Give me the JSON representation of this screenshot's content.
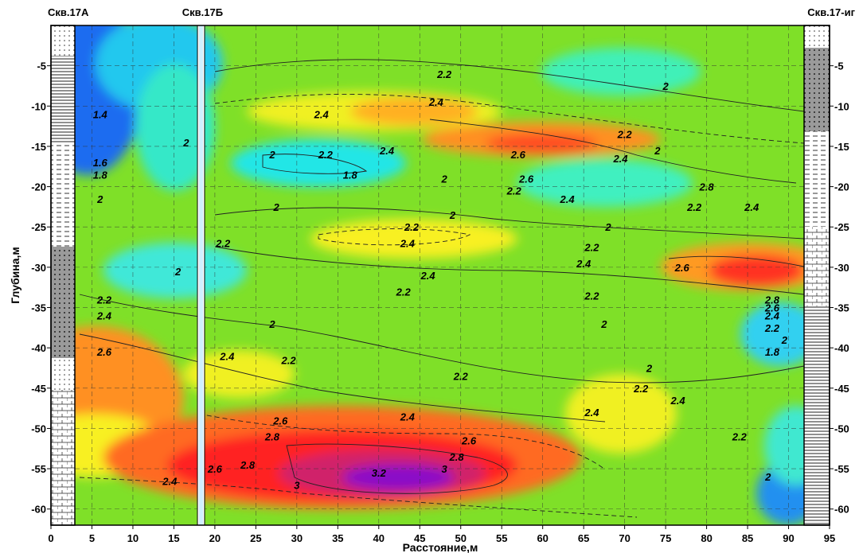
{
  "chart_data": {
    "type": "heatmap",
    "xlabel": "Расстояние,м",
    "ylabel": "Глубина,м",
    "xlim": [
      0,
      95
    ],
    "ylim": [
      -62,
      0
    ],
    "x_ticks": [
      "0",
      "5",
      "10",
      "15",
      "20",
      "25",
      "30",
      "35",
      "40",
      "45",
      "50",
      "55",
      "60",
      "65",
      "70",
      "75",
      "80",
      "85",
      "90",
      "95"
    ],
    "y_ticks": [
      "-5",
      "-10",
      "-15",
      "-20",
      "-25",
      "-30",
      "-35",
      "-40",
      "-45",
      "-50",
      "-55",
      "-60"
    ],
    "grid": true,
    "wells": [
      {
        "name": "Скв.17А",
        "x": 3
      },
      {
        "name": "Скв.17Б",
        "x": 18.5
      },
      {
        "name": "Скв.17-иг",
        "x": 92
      }
    ],
    "contour_labels": [
      {
        "text": "1.4",
        "x": 6,
        "y": -11
      },
      {
        "text": "1.6",
        "x": 6,
        "y": -17
      },
      {
        "text": "1.8",
        "x": 6,
        "y": -18.5
      },
      {
        "text": "2",
        "x": 16.5,
        "y": -14.5
      },
      {
        "text": "2",
        "x": 6,
        "y": -21.5
      },
      {
        "text": "2",
        "x": 15.5,
        "y": -30.5
      },
      {
        "text": "2.2",
        "x": 6.5,
        "y": -34
      },
      {
        "text": "2.4",
        "x": 6.5,
        "y": -36
      },
      {
        "text": "2.6",
        "x": 6.5,
        "y": -40.5
      },
      {
        "text": "2.4",
        "x": 14.5,
        "y": -56.5
      },
      {
        "text": "2.6",
        "x": 20,
        "y": -55
      },
      {
        "text": "2.2",
        "x": 21,
        "y": -27
      },
      {
        "text": "2.4",
        "x": 21.5,
        "y": -41
      },
      {
        "text": "2.8",
        "x": 24,
        "y": -54.5
      },
      {
        "text": "2.8",
        "x": 27,
        "y": -51
      },
      {
        "text": "2.6",
        "x": 28,
        "y": -49
      },
      {
        "text": "3",
        "x": 30,
        "y": -57
      },
      {
        "text": "2",
        "x": 27,
        "y": -16
      },
      {
        "text": "2",
        "x": 27.5,
        "y": -22.5
      },
      {
        "text": "2",
        "x": 27,
        "y": -37
      },
      {
        "text": "2.2",
        "x": 29,
        "y": -41.5
      },
      {
        "text": "2.4",
        "x": 33,
        "y": -11
      },
      {
        "text": "2.2",
        "x": 33.5,
        "y": -16
      },
      {
        "text": "1.8",
        "x": 36.5,
        "y": -18.5
      },
      {
        "text": "2.4",
        "x": 41,
        "y": -15.5
      },
      {
        "text": "2.2",
        "x": 44,
        "y": -25
      },
      {
        "text": "2.4",
        "x": 43.5,
        "y": -27
      },
      {
        "text": "2.4",
        "x": 46,
        "y": -31
      },
      {
        "text": "2.2",
        "x": 43,
        "y": -33
      },
      {
        "text": "2.4",
        "x": 43.5,
        "y": -48.5
      },
      {
        "text": "3.2",
        "x": 40,
        "y": -55.5
      },
      {
        "text": "2",
        "x": 48,
        "y": -19
      },
      {
        "text": "2",
        "x": 49,
        "y": -23.5
      },
      {
        "text": "2.2",
        "x": 48,
        "y": -6
      },
      {
        "text": "2.4",
        "x": 47,
        "y": -9.5
      },
      {
        "text": "2.2",
        "x": 50,
        "y": -43.5
      },
      {
        "text": "2.6",
        "x": 51,
        "y": -51.5
      },
      {
        "text": "2.8",
        "x": 49.5,
        "y": -53.5
      },
      {
        "text": "3",
        "x": 48,
        "y": -55
      },
      {
        "text": "2.6",
        "x": 57,
        "y": -16
      },
      {
        "text": "2.6",
        "x": 58,
        "y": -19
      },
      {
        "text": "2.2",
        "x": 56.5,
        "y": -20.5
      },
      {
        "text": "2.4",
        "x": 63,
        "y": -21.5
      },
      {
        "text": "2",
        "x": 68,
        "y": -25
      },
      {
        "text": "2.2",
        "x": 66,
        "y": -27.5
      },
      {
        "text": "2.4",
        "x": 65,
        "y": -29.5
      },
      {
        "text": "2.2",
        "x": 66,
        "y": -33.5
      },
      {
        "text": "2",
        "x": 67.5,
        "y": -37
      },
      {
        "text": "2.4",
        "x": 66,
        "y": -48
      },
      {
        "text": "2",
        "x": 74,
        "y": -15.5
      },
      {
        "text": "2.2",
        "x": 70,
        "y": -13.5
      },
      {
        "text": "2.4",
        "x": 69.5,
        "y": -16.5
      },
      {
        "text": "2",
        "x": 75,
        "y": -7.5
      },
      {
        "text": "2.8",
        "x": 80,
        "y": -20
      },
      {
        "text": "2.2",
        "x": 78.5,
        "y": -22.5
      },
      {
        "text": "2.6",
        "x": 77,
        "y": -30
      },
      {
        "text": "2",
        "x": 73,
        "y": -42.5
      },
      {
        "text": "2.2",
        "x": 72,
        "y": -45
      },
      {
        "text": "2.4",
        "x": 76.5,
        "y": -46.5
      },
      {
        "text": "2.4",
        "x": 85.5,
        "y": -22.5
      },
      {
        "text": "2.2",
        "x": 84,
        "y": -51
      },
      {
        "text": "2",
        "x": 87.5,
        "y": -56
      },
      {
        "text": "2.8",
        "x": 88,
        "y": -34
      },
      {
        "text": "2.6",
        "x": 88,
        "y": -35
      },
      {
        "text": "2.4",
        "x": 88,
        "y": -36
      },
      {
        "text": "2.2",
        "x": 88,
        "y": -37.5
      },
      {
        "text": "2",
        "x": 89.5,
        "y": -39
      },
      {
        "text": "1.8",
        "x": 88,
        "y": -40.5
      }
    ]
  }
}
